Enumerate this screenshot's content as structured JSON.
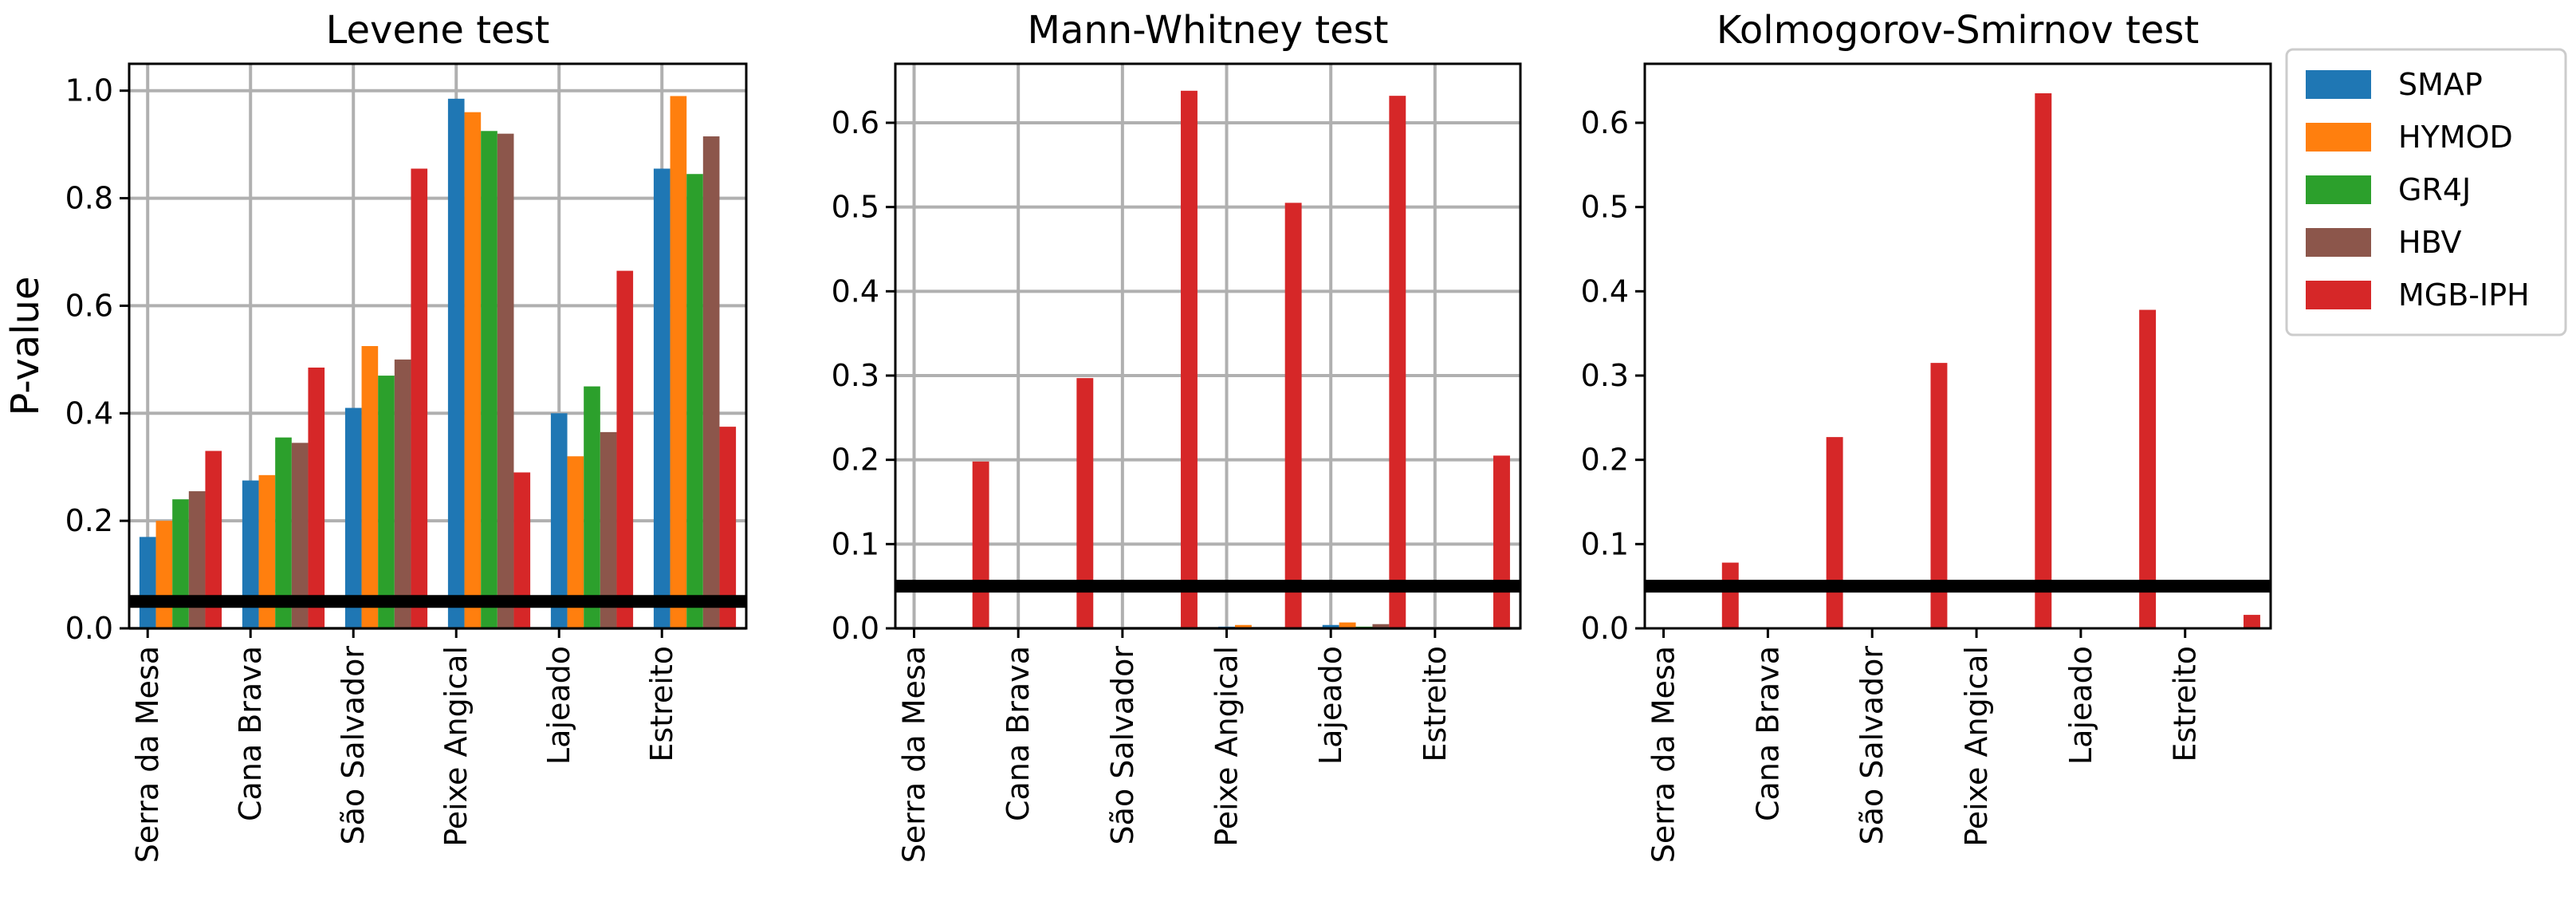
{
  "chart_data": [
    {
      "type": "bar",
      "title": "Levene test",
      "ylabel": "P-value",
      "xlabel": "",
      "ylim": [
        0,
        1.05
      ],
      "yticks": [
        "0.0",
        "0.2",
        "0.4",
        "0.6",
        "0.8",
        "1.0"
      ],
      "ytick_values": [
        0,
        0.2,
        0.4,
        0.6,
        0.8,
        1.0
      ],
      "threshold": 0.05,
      "grid": true,
      "categories": [
        "Serra da Mesa",
        "Cana Brava",
        "São Salvador",
        "Peixe Angical",
        "Lajeado",
        "Estreito"
      ],
      "series": [
        {
          "name": "SMAP",
          "values": [
            0.17,
            0.275,
            0.41,
            0.985,
            0.4,
            0.855
          ]
        },
        {
          "name": "HYMOD",
          "values": [
            0.2,
            0.285,
            0.525,
            0.96,
            0.32,
            0.99
          ]
        },
        {
          "name": "GR4J",
          "values": [
            0.24,
            0.355,
            0.47,
            0.925,
            0.45,
            0.845
          ]
        },
        {
          "name": "HBV",
          "values": [
            0.255,
            0.345,
            0.5,
            0.92,
            0.365,
            0.915
          ]
        },
        {
          "name": "MGB-IPH",
          "values": [
            0.33,
            0.485,
            0.855,
            0.29,
            0.665,
            0.375
          ]
        }
      ]
    },
    {
      "type": "bar",
      "title": "Mann-Whitney test",
      "xlabel": "",
      "ylabel": "",
      "ylim": [
        0,
        0.67
      ],
      "yticks": [
        "0.0",
        "0.1",
        "0.2",
        "0.3",
        "0.4",
        "0.5",
        "0.6"
      ],
      "ytick_values": [
        0,
        0.1,
        0.2,
        0.3,
        0.4,
        0.5,
        0.6
      ],
      "threshold": 0.05,
      "grid": true,
      "categories": [
        "Serra da Mesa",
        "Cana Brava",
        "São Salvador",
        "Peixe Angical",
        "Lajeado",
        "Estreito"
      ],
      "series": [
        {
          "name": "SMAP",
          "values": [
            0.0,
            0.0,
            0.0,
            0.002,
            0.004,
            0.0
          ]
        },
        {
          "name": "HYMOD",
          "values": [
            0.0,
            0.0,
            0.0,
            0.004,
            0.007,
            0.0
          ]
        },
        {
          "name": "GR4J",
          "values": [
            0.0,
            0.0,
            0.0,
            0.001,
            0.002,
            0.0
          ]
        },
        {
          "name": "HBV",
          "values": [
            0.0,
            0.0,
            0.0,
            0.001,
            0.005,
            0.0
          ]
        },
        {
          "name": "MGB-IPH",
          "values": [
            0.198,
            0.297,
            0.638,
            0.505,
            0.632,
            0.205
          ]
        }
      ]
    },
    {
      "type": "bar",
      "title": "Kolmogorov-Smirnov test",
      "xlabel": "",
      "ylabel": "",
      "ylim": [
        0,
        0.67
      ],
      "yticks": [
        "0.0",
        "0.1",
        "0.2",
        "0.3",
        "0.4",
        "0.5",
        "0.6"
      ],
      "ytick_values": [
        0,
        0.1,
        0.2,
        0.3,
        0.4,
        0.5,
        0.6
      ],
      "threshold": 0.05,
      "grid": false,
      "categories": [
        "Serra da Mesa",
        "Cana Brava",
        "São Salvador",
        "Peixe Angical",
        "Lajeado",
        "Estreito"
      ],
      "series": [
        {
          "name": "SMAP",
          "values": [
            0.0,
            0.0,
            0.0,
            0.0,
            0.0,
            0.0
          ]
        },
        {
          "name": "HYMOD",
          "values": [
            0.0,
            0.0,
            0.0,
            0.0,
            0.0,
            0.0
          ]
        },
        {
          "name": "GR4J",
          "values": [
            0.0,
            0.0,
            0.0,
            0.0,
            0.0,
            0.0
          ]
        },
        {
          "name": "HBV",
          "values": [
            0.0,
            0.0,
            0.0,
            0.0,
            0.0,
            0.0
          ]
        },
        {
          "name": "MGB-IPH",
          "values": [
            0.078,
            0.227,
            0.315,
            0.635,
            0.378,
            0.016
          ]
        }
      ]
    }
  ],
  "legend": {
    "placement": "outside-right",
    "items": [
      {
        "name": "SMAP",
        "color": "#1f77b4"
      },
      {
        "name": "HYMOD",
        "color": "#ff7f0e"
      },
      {
        "name": "GR4J",
        "color": "#2ca02c"
      },
      {
        "name": "HBV",
        "color": "#8c564b"
      },
      {
        "name": "MGB-IPH",
        "color": "#d62728"
      }
    ]
  },
  "series_colors": {
    "SMAP": "#1f77b4",
    "HYMOD": "#ff7f0e",
    "GR4J": "#2ca02c",
    "HBV": "#8c564b",
    "MGB-IPH": "#d62728"
  }
}
